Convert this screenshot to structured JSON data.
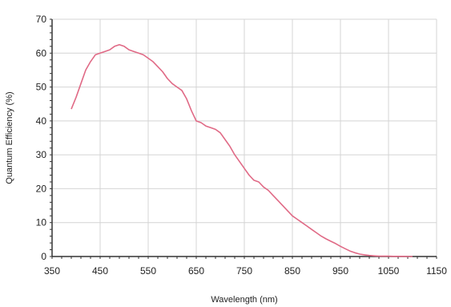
{
  "chart_data": {
    "type": "line",
    "title": "",
    "xlabel": "Wavelength (nm)",
    "ylabel": "Quantum Efficiency (%)",
    "xlim": [
      350,
      1150
    ],
    "ylim": [
      0,
      70
    ],
    "x_ticks": [
      350,
      450,
      550,
      650,
      750,
      850,
      950,
      1050,
      1150
    ],
    "x_tick_labels": [
      "350",
      "450",
      "550",
      "650",
      "750",
      "850",
      "950",
      "1050",
      "1150"
    ],
    "y_ticks": [
      0,
      10,
      20,
      30,
      40,
      50,
      60,
      70
    ],
    "y_tick_labels": [
      "0",
      "10",
      "20",
      "30",
      "40",
      "50",
      "60",
      "70"
    ],
    "grid": true,
    "legend": "none",
    "colors": {
      "line": "#e06a86",
      "grid": "#d4d4d4",
      "axis": "#333333"
    },
    "series": [
      {
        "x": [
          390,
          400,
          410,
          420,
          430,
          440,
          450,
          460,
          470,
          480,
          490,
          500,
          510,
          520,
          530,
          540,
          550,
          560,
          570,
          580,
          590,
          600,
          610,
          620,
          630,
          640,
          650,
          660,
          670,
          680,
          690,
          700,
          710,
          720,
          730,
          740,
          750,
          760,
          770,
          780,
          790,
          800,
          810,
          820,
          830,
          840,
          850,
          860,
          870,
          880,
          890,
          900,
          910,
          920,
          930,
          940,
          950,
          960,
          970,
          980,
          990,
          1000,
          1010,
          1020,
          1030,
          1040,
          1050,
          1060,
          1070,
          1080,
          1090,
          1100
        ],
        "y": [
          43.5,
          47,
          51,
          55,
          57.5,
          59.5,
          60,
          60.5,
          61,
          62,
          62.5,
          62,
          61,
          60.5,
          60,
          59.5,
          58.5,
          57.5,
          56,
          54.5,
          52.5,
          51,
          50,
          49,
          46.5,
          43,
          40,
          39.5,
          38.5,
          38,
          37.5,
          36.5,
          34.5,
          32.5,
          30,
          28,
          26,
          24,
          22.5,
          22,
          20.5,
          19.5,
          18,
          16.5,
          15,
          13.5,
          12,
          11,
          10,
          9,
          8,
          7,
          6,
          5.2,
          4.5,
          3.8,
          3,
          2.3,
          1.6,
          1.1,
          0.7,
          0.5,
          0.3,
          0.2,
          0.1,
          0.1,
          0.1,
          0.05,
          0.05,
          0.05,
          0,
          0
        ]
      }
    ]
  }
}
